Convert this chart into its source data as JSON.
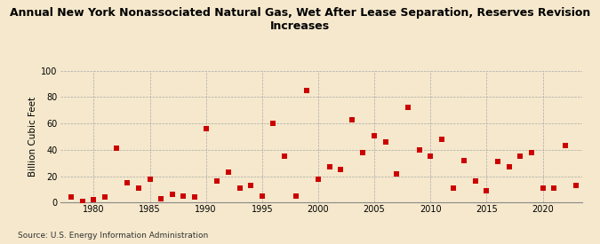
{
  "title": "Annual New York Nonassociated Natural Gas, Wet After Lease Separation, Reserves Revision\nIncreases",
  "ylabel": "Billion Cubic Feet",
  "source": "Source: U.S. Energy Information Administration",
  "background_color": "#f5e8cc",
  "plot_background_color": "#f5e8cc",
  "marker_color": "#cc0000",
  "marker": "s",
  "marker_size": 16,
  "xlim": [
    1977,
    2023.5
  ],
  "ylim": [
    0,
    100
  ],
  "yticks": [
    0,
    20,
    40,
    60,
    80,
    100
  ],
  "xticks": [
    1980,
    1985,
    1990,
    1995,
    2000,
    2005,
    2010,
    2015,
    2020
  ],
  "data": {
    "1978": 4,
    "1979": 1,
    "1980": 2,
    "1981": 4,
    "1982": 41,
    "1983": 15,
    "1984": 11,
    "1985": 18,
    "1986": 3,
    "1987": 6,
    "1988": 5,
    "1989": 4,
    "1990": 56,
    "1991": 16,
    "1992": 23,
    "1993": 11,
    "1994": 13,
    "1995": 5,
    "1996": 60,
    "1997": 35,
    "1998": 5,
    "1999": 85,
    "2000": 18,
    "2001": 27,
    "2002": 25,
    "2003": 63,
    "2004": 38,
    "2005": 51,
    "2006": 46,
    "2007": 22,
    "2008": 72,
    "2009": 40,
    "2010": 35,
    "2011": 48,
    "2012": 11,
    "2013": 32,
    "2014": 16,
    "2015": 9,
    "2016": 31,
    "2017": 27,
    "2018": 35,
    "2019": 38,
    "2020": 11,
    "2021": 11,
    "2022": 43,
    "2023": 13
  }
}
